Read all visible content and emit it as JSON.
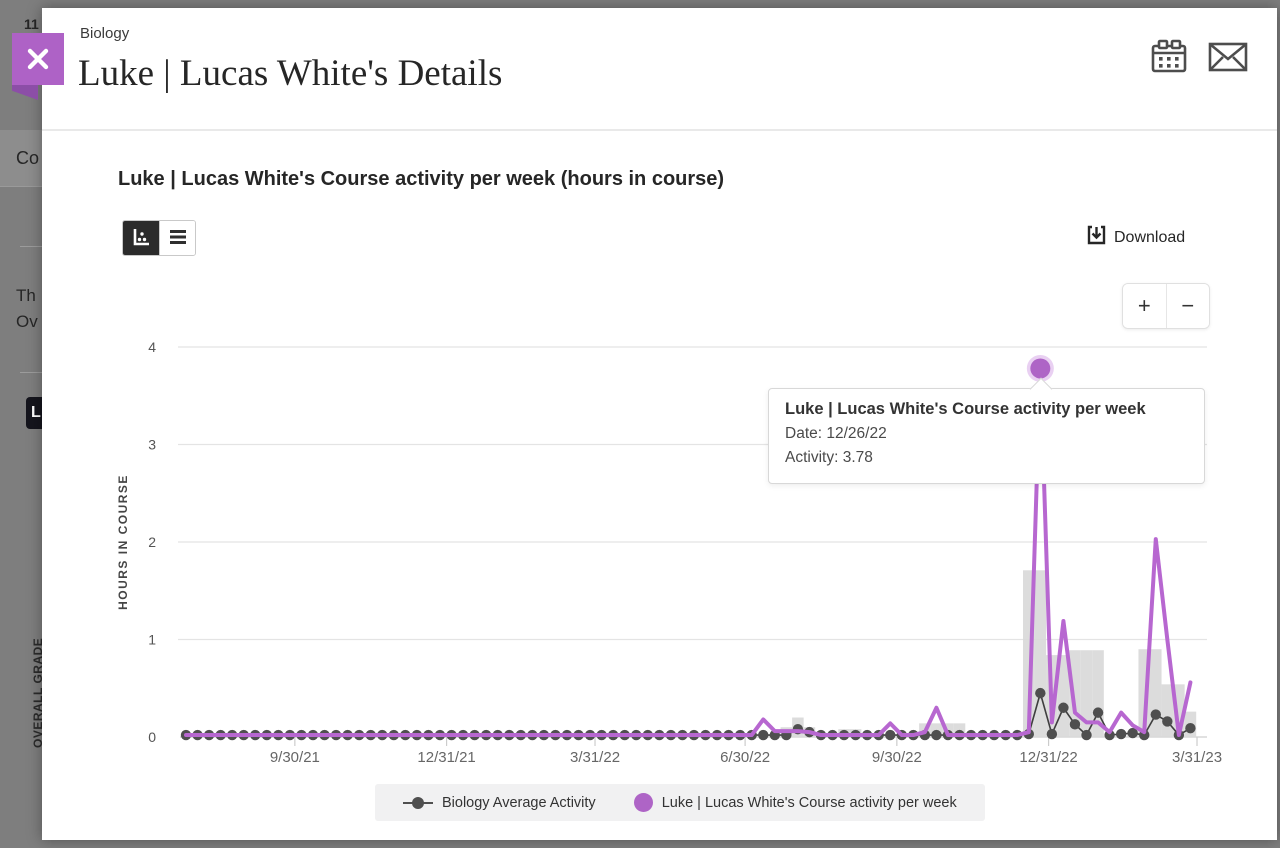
{
  "overlay": {
    "top_fragment": "11",
    "course_menu_fragment": "Co",
    "text_fragment_1": "Th",
    "text_fragment_2": "Ov",
    "avatar_fragment": "L",
    "vertical_label": "OVERALL GRADE"
  },
  "modal": {
    "header": {
      "course": "Biology",
      "title": "Luke | Lucas White's Details"
    }
  },
  "section": {
    "title": "Luke | Lucas White's Course activity per week (hours in course)"
  },
  "toolbar": {
    "download_label": "Download"
  },
  "zoom_controls": {
    "zoom_in": "+",
    "zoom_out": "−"
  },
  "tooltip": {
    "title": "Luke | Lucas White's Course activity per week",
    "date": "Date: 12/26/22",
    "activity": "Activity: 3.78"
  },
  "legend": {
    "avg_label": "Biology Average Activity",
    "luke_label": "Luke | Lucas White's Course activity per week"
  },
  "icons": {
    "close": "x-cross",
    "calendar": "calendar-grid",
    "email": "envelope",
    "chart_view": "scatter-axis",
    "table_view": "rows",
    "download": "tray-down-arrow"
  },
  "colors": {
    "accent": "#ae64c6",
    "accent_line": "#b767d0",
    "accent_halo": "#e9d0f2",
    "avg_dot": "#4f4f4f",
    "avg_line": "#3f3f3f",
    "bar": "#d9d9d9",
    "ribbon": "#ae62c6",
    "ribbon_fold": "#8c4ea7",
    "grid": "#e4e4e4"
  },
  "chart_data": {
    "type": "line",
    "title": "Luke | Lucas White's Course activity per week (hours in course)",
    "xlabel": "",
    "ylabel": "HOURS IN COURSE",
    "ylim": [
      0,
      4
    ],
    "yticks": [
      0,
      1,
      2,
      3,
      4
    ],
    "grid": true,
    "legend_position": "bottom",
    "xtick_labels": [
      "9/30/21",
      "12/31/21",
      "3/31/22",
      "6/30/22",
      "9/30/22",
      "12/31/22",
      "3/31/23"
    ],
    "x_weeks": [
      "7/26/21",
      "8/2/21",
      "8/9/21",
      "8/16/21",
      "8/23/21",
      "8/30/21",
      "9/6/21",
      "9/13/21",
      "9/20/21",
      "9/27/21",
      "10/4/21",
      "10/11/21",
      "10/18/21",
      "10/25/21",
      "11/1/21",
      "11/8/21",
      "11/15/21",
      "11/22/21",
      "11/29/21",
      "12/6/21",
      "12/13/21",
      "12/20/21",
      "12/27/21",
      "1/3/22",
      "1/10/22",
      "1/17/22",
      "1/24/22",
      "1/31/22",
      "2/7/22",
      "2/14/22",
      "2/21/22",
      "2/28/22",
      "3/7/22",
      "3/14/22",
      "3/21/22",
      "3/28/22",
      "4/4/22",
      "4/11/22",
      "4/18/22",
      "4/25/22",
      "5/2/22",
      "5/9/22",
      "5/16/22",
      "5/23/22",
      "5/30/22",
      "6/6/22",
      "6/13/22",
      "6/20/22",
      "6/27/22",
      "7/4/22",
      "7/11/22",
      "7/18/22",
      "7/25/22",
      "8/1/22",
      "8/8/22",
      "8/15/22",
      "8/22/22",
      "8/29/22",
      "9/5/22",
      "9/12/22",
      "9/19/22",
      "9/26/22",
      "10/3/22",
      "10/10/22",
      "10/17/22",
      "10/24/22",
      "10/31/22",
      "11/7/22",
      "11/14/22",
      "11/21/22",
      "11/28/22",
      "12/5/22",
      "12/12/22",
      "12/19/22",
      "12/26/22",
      "1/2/23",
      "1/9/23",
      "1/16/23",
      "1/23/23",
      "1/30/23",
      "2/6/23",
      "2/13/23",
      "2/20/23",
      "2/27/23",
      "3/6/23",
      "3/13/23",
      "3/20/23",
      "3/27/23"
    ],
    "series": [
      {
        "name": "Biology Average Activity",
        "type": "line",
        "marker": "dot",
        "color": "#4f4f4f",
        "values": [
          0.02,
          0.02,
          0.02,
          0.02,
          0.02,
          0.02,
          0.02,
          0.02,
          0.02,
          0.02,
          0.02,
          0.02,
          0.02,
          0.02,
          0.02,
          0.02,
          0.02,
          0.02,
          0.02,
          0.02,
          0.02,
          0.02,
          0.02,
          0.02,
          0.02,
          0.02,
          0.02,
          0.02,
          0.02,
          0.02,
          0.02,
          0.02,
          0.02,
          0.02,
          0.02,
          0.02,
          0.02,
          0.02,
          0.02,
          0.02,
          0.02,
          0.02,
          0.02,
          0.02,
          0.02,
          0.02,
          0.02,
          0.02,
          0.02,
          0.02,
          0.02,
          0.02,
          0.02,
          0.08,
          0.05,
          0.02,
          0.02,
          0.02,
          0.02,
          0.02,
          0.02,
          0.02,
          0.02,
          0.02,
          0.02,
          0.02,
          0.02,
          0.02,
          0.02,
          0.02,
          0.02,
          0.02,
          0.02,
          0.03,
          0.45,
          0.03,
          0.3,
          0.13,
          0.02,
          0.25,
          0.02,
          0.03,
          0.04,
          0.02,
          0.23,
          0.16,
          0.02,
          0.09
        ]
      },
      {
        "name": "Luke | Lucas White's Course activity per week",
        "type": "line",
        "marker": "none",
        "color": "#b767d0",
        "values": [
          0.02,
          0.02,
          0.02,
          0.02,
          0.02,
          0.02,
          0.02,
          0.02,
          0.02,
          0.02,
          0.02,
          0.02,
          0.02,
          0.02,
          0.02,
          0.02,
          0.02,
          0.02,
          0.02,
          0.02,
          0.02,
          0.02,
          0.02,
          0.02,
          0.02,
          0.02,
          0.02,
          0.02,
          0.02,
          0.02,
          0.02,
          0.02,
          0.02,
          0.02,
          0.02,
          0.02,
          0.02,
          0.02,
          0.02,
          0.02,
          0.02,
          0.02,
          0.02,
          0.02,
          0.02,
          0.02,
          0.02,
          0.02,
          0.02,
          0.02,
          0.18,
          0.06,
          0.06,
          0.06,
          0.05,
          0.02,
          0.02,
          0.02,
          0.02,
          0.02,
          0.02,
          0.14,
          0.02,
          0.02,
          0.05,
          0.3,
          0.02,
          0.02,
          0.02,
          0.02,
          0.02,
          0.02,
          0.02,
          0.05,
          3.78,
          0.15,
          1.19,
          0.25,
          0.15,
          0.15,
          0.05,
          0.25,
          0.12,
          0.05,
          2.03,
          1.0,
          0.02,
          0.56
        ]
      },
      {
        "name": "Weekly activity histogram",
        "type": "bar",
        "color": "#d9d9d9",
        "values": [
          0,
          0,
          0,
          0,
          0,
          0,
          0,
          0,
          0,
          0,
          0,
          0,
          0,
          0,
          0,
          0,
          0,
          0,
          0,
          0,
          0,
          0,
          0,
          0,
          0,
          0,
          0,
          0,
          0,
          0,
          0,
          0,
          0,
          0,
          0,
          0,
          0,
          0,
          0,
          0,
          0,
          0,
          0,
          0,
          0,
          0,
          0,
          0,
          0,
          0,
          0,
          0,
          0.1,
          0.2,
          0.1,
          0,
          0,
          0.08,
          0.08,
          0,
          0,
          0,
          0,
          0,
          0.14,
          0.14,
          0.14,
          0.14,
          0,
          0,
          0,
          0,
          0,
          1.71,
          1.71,
          0.84,
          0.84,
          0.89,
          0.89,
          0.89,
          0,
          0,
          0.06,
          0.9,
          0.9,
          0.54,
          0.54,
          0.26
        ]
      }
    ],
    "highlight": {
      "series": "Luke | Lucas White's Course activity per week",
      "date": "12/26/22",
      "value": 3.78,
      "index": 74
    }
  }
}
